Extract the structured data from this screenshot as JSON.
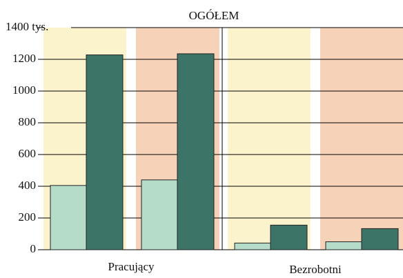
{
  "chart_data": {
    "type": "bar",
    "title": "OGÓŁEM",
    "categories": [
      "Pracujący",
      "Bezrobotni"
    ],
    "series": [
      {
        "color": "#b5dcc9",
        "values": [
          405,
          42
        ]
      },
      {
        "color": "#3c7468",
        "values": [
          1228,
          155
        ]
      },
      {
        "color": "#b5dcc9",
        "values": [
          440,
          50
        ]
      },
      {
        "color": "#3c7468",
        "values": [
          1235,
          133
        ]
      }
    ],
    "band_colors": [
      "#fbf3cc",
      "#f6d3b8"
    ],
    "ylim": [
      0,
      1400
    ],
    "yticks": [
      0,
      200,
      400,
      600,
      800,
      1000,
      1200,
      {
        "value": 1400,
        "label": "1400 tys."
      }
    ],
    "grid": true
  }
}
